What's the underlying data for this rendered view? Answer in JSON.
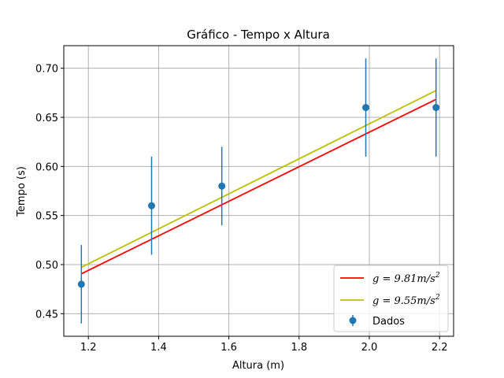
{
  "chart_data": {
    "type": "scatter",
    "title": "Gráfico - Tempo x Altura",
    "xlabel": "Altura (m)",
    "ylabel": "Tempo (s)",
    "xlim": [
      1.13,
      2.24
    ],
    "ylim": [
      0.427,
      0.723
    ],
    "x_ticks": [
      1.2,
      1.4,
      1.6,
      1.8,
      2.0,
      2.2
    ],
    "x_tick_labels": [
      "1.2",
      "1.4",
      "1.6",
      "1.8",
      "2.0",
      "2.2"
    ],
    "y_ticks": [
      0.45,
      0.5,
      0.55,
      0.6,
      0.65,
      0.7
    ],
    "y_tick_labels": [
      "0.45",
      "0.50",
      "0.55",
      "0.60",
      "0.65",
      "0.70"
    ],
    "grid": true,
    "legend_position": "lower-right",
    "series": [
      {
        "name": "Dados",
        "kind": "errorbar",
        "color": "#1f77b4",
        "x": [
          1.18,
          1.38,
          1.58,
          1.99,
          2.19
        ],
        "y": [
          0.48,
          0.56,
          0.58,
          0.66,
          0.66
        ],
        "yerr": [
          0.04,
          0.05,
          0.04,
          0.05,
          0.05
        ]
      },
      {
        "name_prefix": "g = ",
        "name_value": "9.81m/s",
        "name_exp": "2",
        "kind": "line",
        "color": "#ff0000",
        "x": [
          1.18,
          2.19
        ],
        "y": [
          0.4906,
          0.6683
        ]
      },
      {
        "name_prefix": "g = ",
        "name_value": "9.55m/s",
        "name_exp": "2",
        "kind": "line",
        "color": "#bfbf00",
        "x": [
          1.18,
          2.19
        ],
        "y": [
          0.4972,
          0.6773
        ]
      }
    ]
  }
}
